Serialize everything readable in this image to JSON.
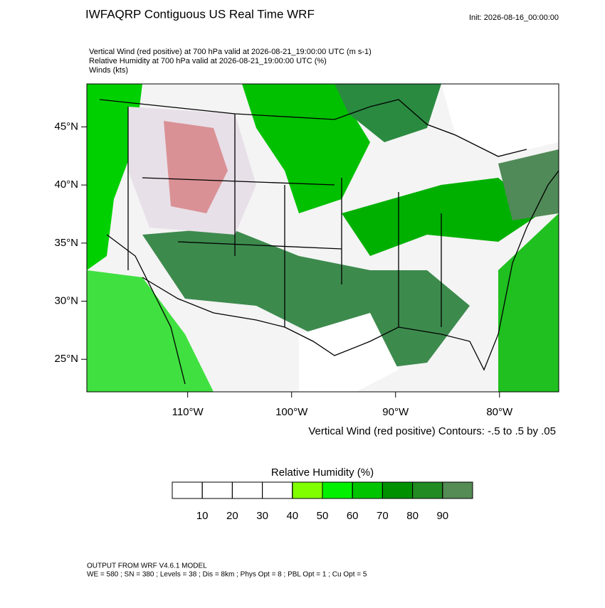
{
  "header": {
    "title": "IWFAQRP Contiguous US Real Time WRF",
    "init": "Init: 2026-08-16_00:00:00",
    "lines": [
      "Vertical Wind (red positive) at 700 hPa valid at 2026-08-21_19:00:00 UTC   (m s-1)",
      "Relative Humidity at 700 hPa valid at 2026-08-21_19:00:00 UTC   (%)",
      "Winds   (kts)"
    ]
  },
  "map": {
    "xlim": [
      -119.7,
      -74.3
    ],
    "ylim": [
      22.2,
      48.7
    ],
    "xticks": [
      {
        "value": -110,
        "label": "110°W"
      },
      {
        "value": -100,
        "label": "100°W"
      },
      {
        "value": -90,
        "label": "90°W"
      },
      {
        "value": -80,
        "label": "80°W"
      }
    ],
    "yticks": [
      {
        "value": 25,
        "label": "25°N"
      },
      {
        "value": 30,
        "label": "30°N"
      },
      {
        "value": 35,
        "label": "35°N"
      },
      {
        "value": 40,
        "label": "40°N"
      },
      {
        "value": 45,
        "label": "45°N"
      }
    ],
    "note": "Vertical Wind (red positive) Contours: -.5 to .5 by .05"
  },
  "colorbar": {
    "title": "Relative Humidity  (%)",
    "lim": [
      0,
      100
    ],
    "colors": [
      "#ffffff",
      "#ffffff",
      "#ffffff",
      "#ffffff",
      "#80ff00",
      "#00f000",
      "#00c400",
      "#009000",
      "#228b22",
      "#558b55"
    ],
    "ticks": [
      10,
      20,
      30,
      40,
      50,
      60,
      70,
      80,
      90
    ]
  },
  "footer": [
    "OUTPUT FROM WRF V4.6.1 MODEL",
    "WE = 580 ; SN = 380 ; Levels = 38 ; Dis = 8km ; Phys Opt = 8 ; PBL Opt = 1 ; Cu Opt = 5"
  ]
}
